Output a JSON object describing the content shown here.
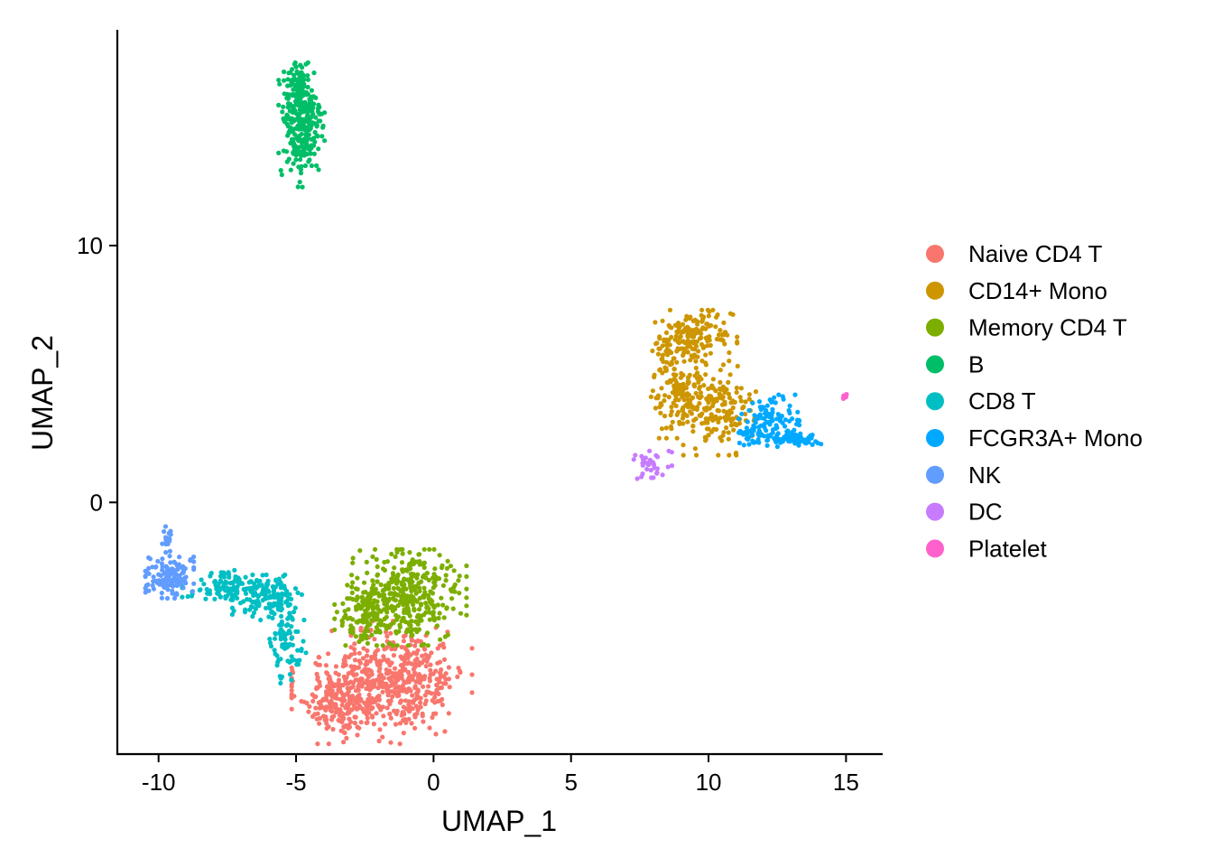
{
  "chart_data": {
    "type": "scatter",
    "xlabel": "UMAP_1",
    "ylabel": "UMAP_2",
    "xlim": [
      -11.5,
      16.3
    ],
    "ylim": [
      -9.8,
      18.4
    ],
    "xticks": [
      -10,
      -5,
      0,
      5,
      10,
      15
    ],
    "xtick_labels": [
      "-10",
      "-5",
      "0",
      "5",
      "10",
      "15"
    ],
    "yticks": [
      0,
      10
    ],
    "ytick_labels": [
      "0",
      "10"
    ],
    "grid": false,
    "legend_position": "right",
    "series": [
      {
        "name": "Naive CD4 T",
        "color": "#F8766D",
        "n": 700,
        "blobs": [
          [
            -2.3,
            -7.2,
            1.3,
            1.0,
            0.55
          ],
          [
            -0.8,
            -6.6,
            1.0,
            0.9,
            0.3
          ],
          [
            -3.5,
            -7.8,
            0.5,
            0.5,
            0.15
          ]
        ]
      },
      {
        "name": "CD14+ Mono",
        "color": "#CD9600",
        "n": 480,
        "blobs": [
          [
            8.9,
            4.7,
            0.45,
            1.0,
            0.35
          ],
          [
            9.5,
            6.5,
            0.7,
            0.45,
            0.3
          ],
          [
            10.4,
            3.6,
            0.6,
            0.8,
            0.35
          ]
        ]
      },
      {
        "name": "Memory CD4 T",
        "color": "#7CAE00",
        "n": 480,
        "blobs": [
          [
            -1.0,
            -3.7,
            1.0,
            0.85,
            0.8
          ],
          [
            -2.5,
            -4.3,
            0.5,
            0.5,
            0.2
          ]
        ]
      },
      {
        "name": "B",
        "color": "#00BE67",
        "n": 340,
        "blobs": [
          [
            -4.8,
            14.7,
            0.38,
            1.1,
            0.85
          ],
          [
            -5.0,
            16.3,
            0.2,
            0.35,
            0.15
          ]
        ]
      },
      {
        "name": "CD8 T",
        "color": "#00BFC4",
        "n": 320,
        "blobs": [
          [
            -6.0,
            -3.7,
            0.6,
            0.4,
            0.45
          ],
          [
            -7.6,
            -3.3,
            0.7,
            0.3,
            0.3
          ],
          [
            -5.3,
            -5.5,
            0.3,
            0.7,
            0.25
          ]
        ]
      },
      {
        "name": "FCGR3A+ Mono",
        "color": "#00A9FF",
        "n": 190,
        "blobs": [
          [
            12.2,
            3.2,
            0.5,
            0.45,
            0.5
          ],
          [
            13.1,
            2.5,
            0.45,
            0.15,
            0.35
          ],
          [
            11.6,
            2.7,
            0.3,
            0.2,
            0.15
          ]
        ]
      },
      {
        "name": "NK",
        "color": "#619CFF",
        "n": 160,
        "blobs": [
          [
            -9.6,
            -2.9,
            0.4,
            0.38,
            0.9
          ],
          [
            -9.7,
            -1.5,
            0.08,
            0.4,
            0.1
          ]
        ]
      },
      {
        "name": "DC",
        "color": "#C77CFF",
        "n": 34,
        "blobs": [
          [
            7.9,
            1.6,
            0.35,
            0.35,
            1.0
          ]
        ]
      },
      {
        "name": "Platelet",
        "color": "#FF61CC",
        "n": 10,
        "blobs": [
          [
            14.95,
            4.15,
            0.05,
            0.06,
            1.0
          ]
        ]
      }
    ]
  }
}
